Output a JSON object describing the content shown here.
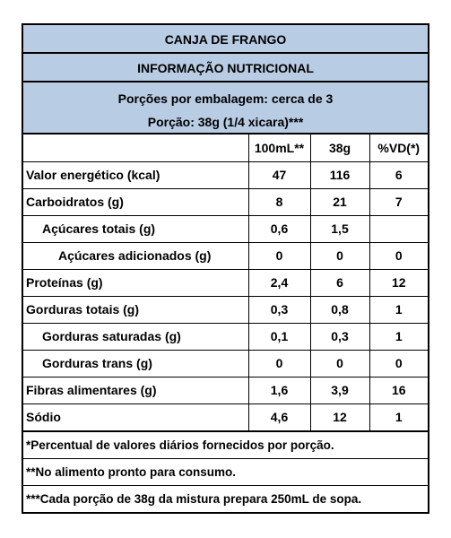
{
  "header": {
    "title": "CANJA DE FRANGO",
    "section": "INFORMAÇÃO NUTRICIONAL",
    "servings_per_package": "Porções por embalagem: cerca de 3",
    "serving_size": "Porção: 38g (1/4 xicara)***"
  },
  "columns": [
    "",
    "100mL**",
    "38g",
    "%VD(*)"
  ],
  "rows": [
    {
      "label": "Valor energético (kcal)",
      "v100": "47",
      "v38": "116",
      "vd": "6"
    },
    {
      "label": "Carboidratos (g)",
      "v100": "8",
      "v38": "21",
      "vd": "7"
    },
    {
      "label": "Açúcares totais (g)",
      "v100": "0,6",
      "v38": "1,5",
      "vd": ""
    },
    {
      "label": "Açúcares adicionados (g)",
      "v100": "0",
      "v38": "0",
      "vd": "0"
    },
    {
      "label": "Proteínas (g)",
      "v100": "2,4",
      "v38": "6",
      "vd": "12"
    },
    {
      "label": "Gorduras totais (g)",
      "v100": "0,3",
      "v38": "0,8",
      "vd": "1"
    },
    {
      "label": "Gorduras saturadas (g)",
      "v100": "0,1",
      "v38": "0,3",
      "vd": "1"
    },
    {
      "label": "Gorduras trans (g)",
      "v100": "0",
      "v38": "0",
      "vd": "0"
    },
    {
      "label": "Fibras alimentares (g)",
      "v100": "1,6",
      "v38": "3,9",
      "vd": "16"
    },
    {
      "label": "Sódio",
      "v100": "4,6",
      "v38": "12",
      "vd": "1"
    }
  ],
  "footnotes": [
    "*Percentual de valores diários fornecidos por porção.",
    "**No alimento pronto para consumo.",
    "***Cada porção de 38g da mistura prepara 250mL de sopa."
  ],
  "colors": {
    "header_background": "#b8cce4",
    "border": "#000000"
  }
}
